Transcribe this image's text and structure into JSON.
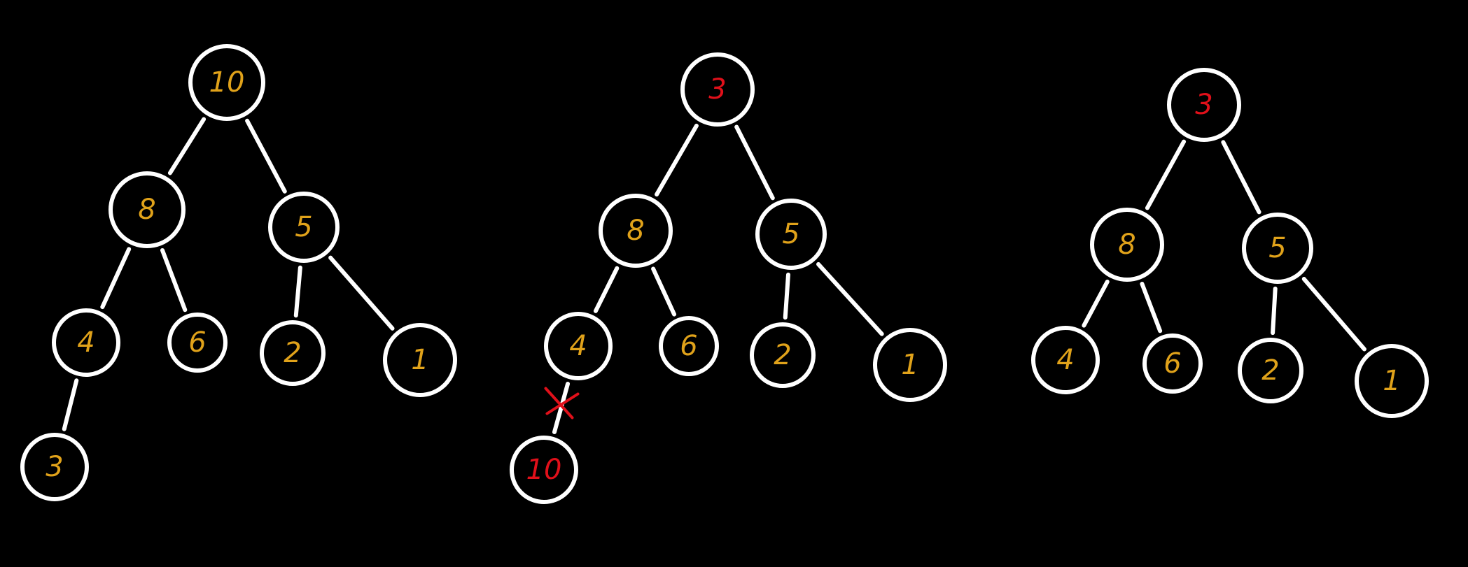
{
  "colors": {
    "background": "#000000",
    "stroke": "#ffffff",
    "default_label": "#e0a21a",
    "highlight_label": "#e0101a"
  },
  "trees": [
    {
      "nodes": [
        {
          "id": "a",
          "label": "10",
          "color": "default_label"
        },
        {
          "id": "b",
          "label": "8",
          "color": "default_label"
        },
        {
          "id": "c",
          "label": "5",
          "color": "default_label"
        },
        {
          "id": "d",
          "label": "4",
          "color": "default_label"
        },
        {
          "id": "e",
          "label": "6",
          "color": "default_label"
        },
        {
          "id": "f",
          "label": "2",
          "color": "default_label"
        },
        {
          "id": "g",
          "label": "1",
          "color": "default_label"
        },
        {
          "id": "h",
          "label": "3",
          "color": "default_label"
        }
      ],
      "edges": [
        [
          "a",
          "b"
        ],
        [
          "a",
          "c"
        ],
        [
          "b",
          "d"
        ],
        [
          "b",
          "e"
        ],
        [
          "c",
          "f"
        ],
        [
          "c",
          "g"
        ],
        [
          "d",
          "h"
        ]
      ],
      "crossed_edges": []
    },
    {
      "nodes": [
        {
          "id": "a",
          "label": "3",
          "color": "highlight_label"
        },
        {
          "id": "b",
          "label": "8",
          "color": "default_label"
        },
        {
          "id": "c",
          "label": "5",
          "color": "default_label"
        },
        {
          "id": "d",
          "label": "4",
          "color": "default_label"
        },
        {
          "id": "e",
          "label": "6",
          "color": "default_label"
        },
        {
          "id": "f",
          "label": "2",
          "color": "default_label"
        },
        {
          "id": "g",
          "label": "1",
          "color": "default_label"
        },
        {
          "id": "h",
          "label": "10",
          "color": "highlight_label"
        }
      ],
      "edges": [
        [
          "a",
          "b"
        ],
        [
          "a",
          "c"
        ],
        [
          "b",
          "d"
        ],
        [
          "b",
          "e"
        ],
        [
          "c",
          "f"
        ],
        [
          "c",
          "g"
        ],
        [
          "d",
          "h"
        ]
      ],
      "crossed_edges": [
        [
          "d",
          "h"
        ]
      ]
    },
    {
      "nodes": [
        {
          "id": "a",
          "label": "3",
          "color": "highlight_label"
        },
        {
          "id": "b",
          "label": "8",
          "color": "default_label"
        },
        {
          "id": "c",
          "label": "5",
          "color": "default_label"
        },
        {
          "id": "d",
          "label": "4",
          "color": "default_label"
        },
        {
          "id": "e",
          "label": "6",
          "color": "default_label"
        },
        {
          "id": "f",
          "label": "2",
          "color": "default_label"
        },
        {
          "id": "g",
          "label": "1",
          "color": "default_label"
        }
      ],
      "edges": [
        [
          "a",
          "b"
        ],
        [
          "a",
          "c"
        ],
        [
          "b",
          "d"
        ],
        [
          "b",
          "e"
        ],
        [
          "c",
          "f"
        ],
        [
          "c",
          "g"
        ]
      ],
      "crossed_edges": []
    }
  ]
}
